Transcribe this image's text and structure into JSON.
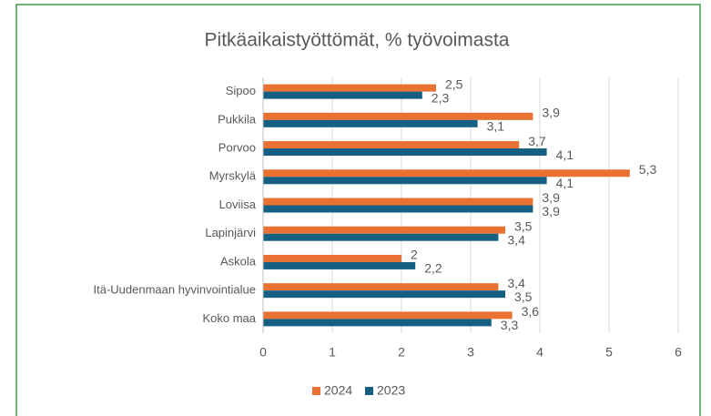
{
  "chart_data": {
    "type": "bar",
    "orientation": "horizontal",
    "title": "Pitkäaikaistyöttömät, % työvoimasta",
    "categories": [
      "Sipoo",
      "Pukkila",
      "Porvoo",
      "Myrskylä",
      "Loviisa",
      "Lapinjärvi",
      "Askola",
      "Itä-Uudenmaan hyvinvointialue",
      "Koko maa"
    ],
    "series": [
      {
        "name": "2024",
        "color": "#e97132",
        "values": [
          2.5,
          3.9,
          3.7,
          5.3,
          3.9,
          3.5,
          2,
          3.4,
          3.6
        ],
        "value_labels": [
          "2,5",
          "3,9",
          "3,7",
          "5,3",
          "3,9",
          "3,5",
          "2",
          "3,4",
          "3,6"
        ]
      },
      {
        "name": "2023",
        "color": "#156082",
        "values": [
          2.3,
          3.1,
          4.1,
          4.1,
          3.9,
          3.4,
          2.2,
          3.5,
          3.3
        ],
        "value_labels": [
          "2,3",
          "3,1",
          "4,1",
          "4,1",
          "3,9",
          "3,4",
          "2,2",
          "3,5",
          "3,3"
        ]
      }
    ],
    "xlim": [
      0,
      6
    ],
    "xticks": [
      0,
      1,
      2,
      3,
      4,
      5,
      6
    ],
    "grid": true,
    "legend": "bottom"
  }
}
